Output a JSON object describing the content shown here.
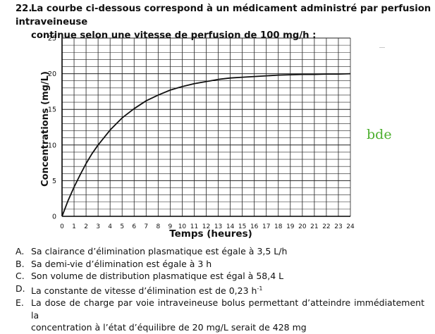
{
  "question": {
    "number": "22.",
    "line1": "La courbe ci-dessous correspond à un médicament administré par perfusion intraveineuse",
    "line2": "continue selon une vitesse de perfusion de 100 mg/h :"
  },
  "chart_data": {
    "type": "line",
    "xlabel": "Temps (heures)",
    "ylabel": "Concentrations (mg/L)",
    "xlim": [
      0,
      24
    ],
    "ylim": [
      0,
      25
    ],
    "x_ticks": [
      "0",
      "1",
      "2",
      "3",
      "4",
      "5",
      "6",
      "7",
      "8",
      "9",
      "10",
      "11",
      "12",
      "13",
      "14",
      "15",
      "16",
      "17",
      "18",
      "19",
      "20",
      "21",
      "22",
      "23",
      "24"
    ],
    "y_ticks": [
      "0",
      "5",
      "10",
      "15",
      "20",
      "25"
    ],
    "grid": true,
    "series": [
      {
        "x": [
          0,
          0.5,
          1,
          1.5,
          2,
          2.5,
          3,
          4,
          5,
          6,
          7,
          8,
          9,
          10,
          11,
          12,
          13,
          14,
          15,
          16,
          17,
          18,
          19,
          20,
          21,
          22,
          23,
          24
        ],
        "values": [
          0,
          2.2,
          4.1,
          5.8,
          7.4,
          8.8,
          10.0,
          12.1,
          13.8,
          15.1,
          16.2,
          17.0,
          17.7,
          18.2,
          18.6,
          18.9,
          19.2,
          19.4,
          19.5,
          19.6,
          19.7,
          19.8,
          19.85,
          19.9,
          19.9,
          19.95,
          19.95,
          20.0
        ],
        "color": "#111111"
      }
    ]
  },
  "answers": [
    {
      "letter": "A.",
      "text": "Sa clairance d’élimination plasmatique est égale à 3,5 L/h"
    },
    {
      "letter": "B.",
      "text": "Sa demi-vie d’élimination est égale à 3 h"
    },
    {
      "letter": "C.",
      "text": "Son volume de distribution plasmatique est égal à 58,4 L"
    },
    {
      "letter": "D.",
      "text": "La constante de vitesse d’élimination est de 0,23 h",
      "sup": "-1"
    },
    {
      "letter": "E.",
      "line1": "La dose de charge par voie intraveineuse bolus permettant d’atteindre immédiatement la",
      "line2": "concentration à l’état d’équilibre de 20 mg/L serait de 428 mg"
    }
  ],
  "annotation": {
    "text": "bde",
    "color": "#4caf2e"
  }
}
